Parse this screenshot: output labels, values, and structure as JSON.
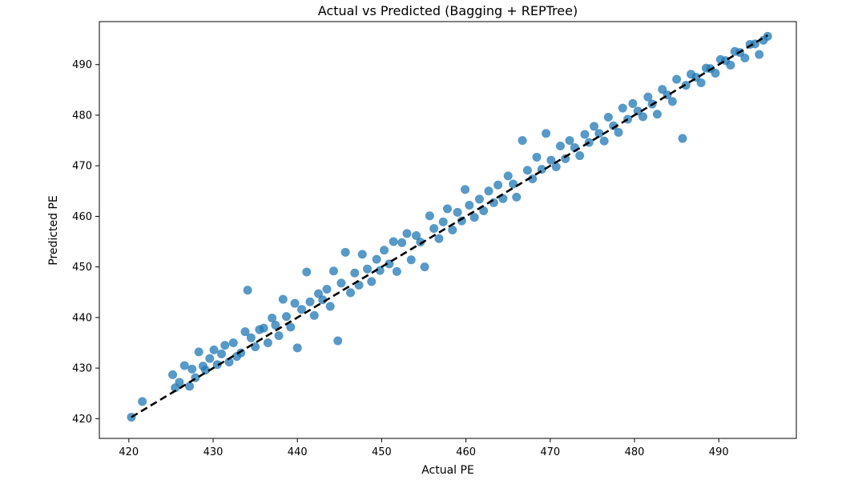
{
  "chart_data": {
    "type": "scatter",
    "title": "Actual vs Predicted (Bagging + REPTree)",
    "xlabel": "Actual PE",
    "ylabel": "Predicted PE",
    "xlim": [
      416.5,
      499.2
    ],
    "ylim": [
      416.1,
      498.5
    ],
    "xticks": [
      420,
      430,
      440,
      450,
      460,
      470,
      480,
      490
    ],
    "yticks": [
      420,
      430,
      440,
      450,
      460,
      470,
      480,
      490
    ],
    "grid": false,
    "point_color": "#1f77b4",
    "reference_line": {
      "x": [
        420.3,
        495.8
      ],
      "y": [
        420.3,
        495.8
      ],
      "style": "dashed",
      "color": "#000000"
    },
    "series": [
      {
        "points": [
          [
            420.3,
            420.3
          ],
          [
            421.6,
            423.4
          ],
          [
            425.2,
            428.7
          ],
          [
            425.5,
            426.1
          ],
          [
            426.0,
            427.2
          ],
          [
            426.6,
            430.5
          ],
          [
            427.2,
            426.4
          ],
          [
            427.5,
            429.8
          ],
          [
            427.9,
            428.1
          ],
          [
            428.3,
            433.2
          ],
          [
            428.8,
            430.4
          ],
          [
            429.1,
            429.6
          ],
          [
            429.6,
            431.9
          ],
          [
            430.1,
            433.6
          ],
          [
            430.5,
            430.7
          ],
          [
            431.0,
            432.8
          ],
          [
            431.4,
            434.5
          ],
          [
            431.9,
            431.2
          ],
          [
            432.4,
            435.0
          ],
          [
            432.8,
            432.3
          ],
          [
            433.3,
            433.0
          ],
          [
            433.8,
            437.2
          ],
          [
            434.1,
            445.4
          ],
          [
            434.5,
            436.0
          ],
          [
            435.0,
            434.2
          ],
          [
            435.5,
            437.6
          ],
          [
            436.0,
            437.9
          ],
          [
            436.5,
            435.0
          ],
          [
            437.0,
            439.9
          ],
          [
            437.4,
            438.5
          ],
          [
            437.8,
            436.4
          ],
          [
            438.3,
            443.6
          ],
          [
            438.7,
            440.2
          ],
          [
            439.2,
            438.1
          ],
          [
            439.7,
            442.8
          ],
          [
            440.0,
            434.0
          ],
          [
            440.5,
            441.6
          ],
          [
            441.1,
            449.0
          ],
          [
            441.5,
            443.1
          ],
          [
            442.0,
            440.4
          ],
          [
            442.5,
            444.7
          ],
          [
            443.0,
            443.5
          ],
          [
            443.5,
            445.6
          ],
          [
            443.9,
            442.2
          ],
          [
            444.3,
            449.2
          ],
          [
            444.8,
            435.4
          ],
          [
            445.2,
            446.8
          ],
          [
            445.7,
            452.9
          ],
          [
            446.3,
            444.9
          ],
          [
            446.8,
            448.8
          ],
          [
            447.3,
            446.4
          ],
          [
            447.7,
            452.5
          ],
          [
            448.3,
            449.6
          ],
          [
            448.8,
            447.1
          ],
          [
            449.4,
            451.5
          ],
          [
            449.8,
            449.3
          ],
          [
            450.3,
            453.3
          ],
          [
            450.9,
            450.6
          ],
          [
            451.4,
            455.0
          ],
          [
            451.8,
            449.1
          ],
          [
            452.4,
            454.8
          ],
          [
            453.0,
            456.6
          ],
          [
            453.5,
            451.4
          ],
          [
            454.1,
            456.2
          ],
          [
            454.6,
            454.9
          ],
          [
            455.1,
            450.0
          ],
          [
            455.7,
            460.1
          ],
          [
            456.2,
            457.6
          ],
          [
            456.8,
            455.6
          ],
          [
            457.3,
            458.9
          ],
          [
            457.8,
            461.5
          ],
          [
            458.4,
            457.3
          ],
          [
            459.0,
            460.8
          ],
          [
            459.5,
            459.1
          ],
          [
            459.9,
            465.3
          ],
          [
            460.4,
            462.2
          ],
          [
            461.0,
            459.8
          ],
          [
            461.6,
            463.4
          ],
          [
            462.1,
            461.1
          ],
          [
            462.7,
            465.0
          ],
          [
            463.3,
            462.7
          ],
          [
            463.8,
            466.2
          ],
          [
            464.4,
            463.5
          ],
          [
            465.0,
            468.0
          ],
          [
            465.6,
            466.4
          ],
          [
            466.0,
            463.8
          ],
          [
            466.7,
            475.0
          ],
          [
            467.3,
            469.1
          ],
          [
            467.9,
            467.4
          ],
          [
            468.4,
            471.7
          ],
          [
            469.0,
            469.3
          ],
          [
            469.5,
            476.4
          ],
          [
            470.1,
            471.1
          ],
          [
            470.7,
            469.8
          ],
          [
            471.2,
            473.9
          ],
          [
            471.8,
            471.4
          ],
          [
            472.3,
            475.0
          ],
          [
            472.9,
            473.6
          ],
          [
            473.5,
            472.0
          ],
          [
            474.1,
            476.2
          ],
          [
            474.6,
            474.6
          ],
          [
            475.2,
            477.8
          ],
          [
            475.8,
            476.4
          ],
          [
            476.4,
            474.9
          ],
          [
            476.9,
            479.6
          ],
          [
            477.5,
            477.9
          ],
          [
            478.1,
            476.6
          ],
          [
            478.6,
            481.4
          ],
          [
            479.2,
            479.2
          ],
          [
            479.8,
            482.3
          ],
          [
            480.4,
            480.8
          ],
          [
            481.0,
            479.7
          ],
          [
            481.6,
            483.6
          ],
          [
            482.1,
            482.2
          ],
          [
            482.7,
            480.2
          ],
          [
            483.3,
            485.1
          ],
          [
            483.9,
            484.0
          ],
          [
            484.5,
            482.7
          ],
          [
            485.0,
            487.1
          ],
          [
            485.7,
            475.4
          ],
          [
            486.1,
            485.9
          ],
          [
            486.7,
            488.1
          ],
          [
            487.3,
            487.5
          ],
          [
            487.9,
            486.4
          ],
          [
            488.5,
            489.3
          ],
          [
            489.0,
            489.2
          ],
          [
            489.6,
            488.3
          ],
          [
            490.2,
            491.0
          ],
          [
            490.8,
            490.8
          ],
          [
            491.4,
            489.9
          ],
          [
            491.9,
            492.6
          ],
          [
            492.5,
            492.4
          ],
          [
            493.1,
            491.3
          ],
          [
            493.7,
            494.0
          ],
          [
            494.3,
            494.1
          ],
          [
            494.8,
            492.0
          ],
          [
            495.3,
            494.8
          ],
          [
            495.8,
            495.6
          ]
        ]
      }
    ]
  }
}
